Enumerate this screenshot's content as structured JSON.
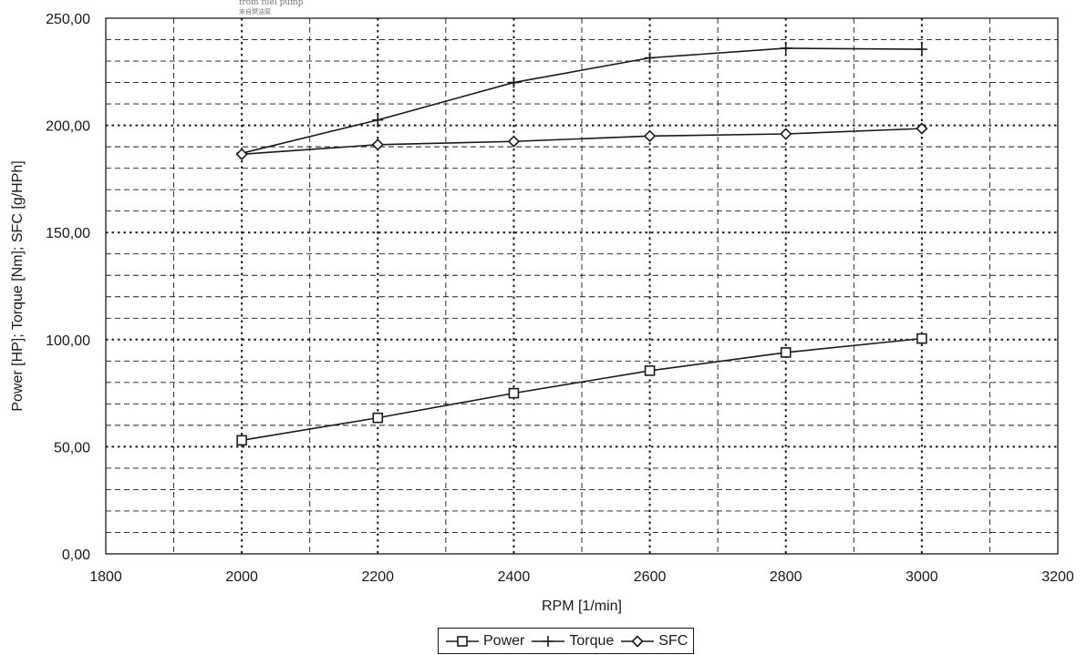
{
  "overlay_text": {
    "line1": "from fuel pump",
    "line2": "来自燃油泵"
  },
  "chart_data": {
    "type": "line",
    "title": "",
    "xlabel": "RPM [1/min]",
    "ylabel": "Power [HP]; Torque [Nm]; SFC [g/HPh]",
    "xlim": [
      1800,
      3200
    ],
    "ylim": [
      0,
      250
    ],
    "x_ticks": [
      1800,
      2000,
      2200,
      2400,
      2600,
      2800,
      3000,
      3200
    ],
    "x_tick_labels": [
      "1800",
      "2000",
      "2200",
      "2400",
      "2600",
      "2800",
      "3000",
      "3200"
    ],
    "y_ticks": [
      0,
      50,
      100,
      150,
      200,
      250
    ],
    "y_tick_labels": [
      "0,00",
      "50,00",
      "100,00",
      "150,00",
      "200,00",
      "250,00"
    ],
    "grid": true,
    "legend_position": "bottom",
    "line_color": "#1a1a1a",
    "series": [
      {
        "name": "Power",
        "marker": "square",
        "x": [
          2000,
          2200,
          2400,
          2600,
          2800,
          3000
        ],
        "y": [
          53,
          63.5,
          75,
          85.5,
          94,
          100.5
        ]
      },
      {
        "name": "Torque",
        "marker": "plus",
        "x": [
          2000,
          2200,
          2400,
          2600,
          2800,
          3000
        ],
        "y": [
          187,
          202.5,
          220,
          231.5,
          236,
          235.5
        ]
      },
      {
        "name": "SFC",
        "marker": "diamond",
        "x": [
          2000,
          2200,
          2400,
          2600,
          2800,
          3000
        ],
        "y": [
          186.5,
          191,
          192.5,
          195,
          196,
          198.5
        ]
      }
    ]
  }
}
